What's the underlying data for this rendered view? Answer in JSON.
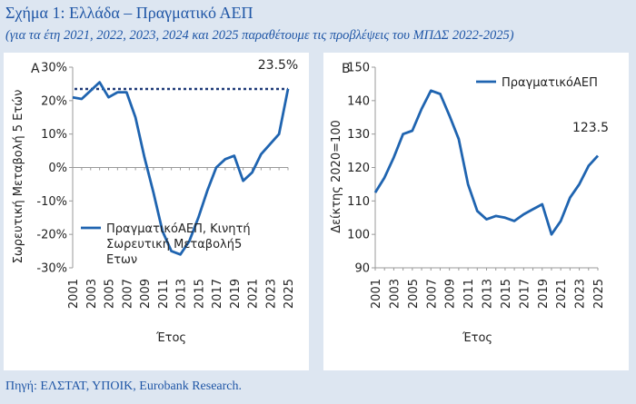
{
  "title": "Σχήμα 1: Ελλάδα – Πραγματικό ΑΕΠ",
  "subtitle": "(για τα έτη 2021, 2022, 2023, 2024 και 2025 παραθέτουμε τις προβλέψεις του ΜΠΔΣ 2022-2025)",
  "source": "Πηγή: ΕΛΣΤΑΤ, ΥΠΟΙΚ, Eurobank Research.",
  "colors": {
    "line": "#1f64b0",
    "dotted": "#1f3a78",
    "axis": "#999999"
  },
  "chart_data": [
    {
      "type": "line",
      "panel_letter": "A",
      "ylabel": "Σωρευτική Μεταβολή 5 Ετών",
      "xlabel": "Έτος",
      "ylim": [
        -30,
        30
      ],
      "yticks": [
        -30,
        -20,
        -10,
        0,
        10,
        20,
        30
      ],
      "ytick_labels": [
        "-30%",
        "-20%",
        "-10%",
        "0%",
        "10%",
        "20%",
        "30%"
      ],
      "xlim": [
        2001,
        2025
      ],
      "xticks": [
        2001,
        2003,
        2005,
        2007,
        2009,
        2011,
        2013,
        2015,
        2017,
        2019,
        2021,
        2023,
        2025
      ],
      "legend": "top-left inside lower area",
      "annotation": "23.5%",
      "reference_line": {
        "y": 23.5,
        "style": "dotted"
      },
      "series": [
        {
          "name": "ΠραγματικόΑΕΠ, Κινητή Σωρευτική Μεταβολή5 Ετων",
          "x": [
            2001,
            2002,
            2003,
            2004,
            2005,
            2006,
            2007,
            2008,
            2009,
            2010,
            2011,
            2012,
            2013,
            2014,
            2015,
            2016,
            2017,
            2018,
            2019,
            2020,
            2021,
            2022,
            2023,
            2024,
            2025
          ],
          "y": [
            21,
            20.5,
            23,
            25.5,
            21,
            22.5,
            22.5,
            15,
            3,
            -7.5,
            -19,
            -25,
            -26,
            -22,
            -15,
            -7,
            0,
            2.5,
            3.5,
            -4,
            -1.5,
            4,
            7,
            10,
            23.5
          ]
        }
      ]
    },
    {
      "type": "line",
      "panel_letter": "B",
      "ylabel": "Δείκτης 2020=100",
      "xlabel": "Έτος",
      "ylim": [
        90,
        150
      ],
      "yticks": [
        90,
        100,
        110,
        120,
        130,
        140,
        150
      ],
      "ytick_labels": [
        "90",
        "100",
        "110",
        "120",
        "130",
        "140",
        "150"
      ],
      "xlim": [
        2001,
        2025
      ],
      "xticks": [
        2001,
        2003,
        2005,
        2007,
        2009,
        2011,
        2013,
        2015,
        2017,
        2019,
        2021,
        2023,
        2025
      ],
      "legend": "top-right",
      "annotation": "123.5",
      "series": [
        {
          "name": "ΠραγματικόΑΕΠ",
          "x": [
            2001,
            2002,
            2003,
            2004,
            2005,
            2006,
            2007,
            2008,
            2009,
            2010,
            2011,
            2012,
            2013,
            2014,
            2015,
            2016,
            2017,
            2018,
            2019,
            2020,
            2021,
            2022,
            2023,
            2024,
            2025
          ],
          "y": [
            112.5,
            117,
            123,
            130,
            131,
            137.5,
            143,
            142,
            135.5,
            128.5,
            115,
            107,
            104.5,
            105.5,
            105,
            104,
            106,
            107.5,
            109,
            100,
            104,
            111,
            115,
            120.5,
            123.5
          ]
        }
      ]
    }
  ]
}
